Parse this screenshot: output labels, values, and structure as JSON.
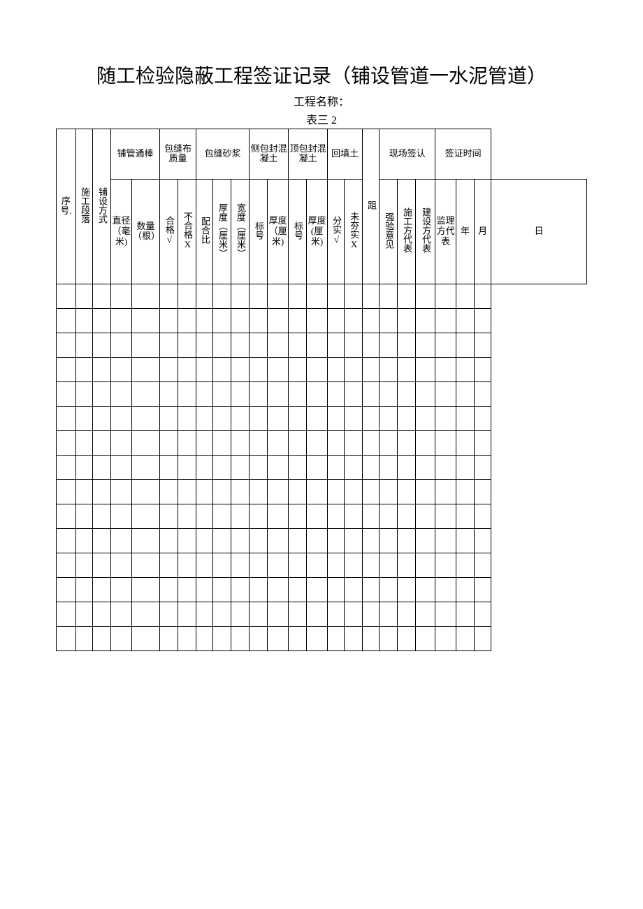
{
  "document": {
    "title": "随工检验隐蔽工程签证记录（铺设管道一水泥管道）",
    "project_name_label": "工程名称：",
    "table_label": "表三 2"
  },
  "headers": {
    "row1": {
      "xuhao": "序号.",
      "shigong": "施工段落",
      "pushefangshi": "铺设方式",
      "puguan": "铺管通棒",
      "baofengbu": "包缝布质量",
      "baofengsha": "包缝砂浆",
      "cebao": "侧包封混凝土",
      "dingbao": "顶包封混凝土",
      "huitian": "回填土",
      "ju": "跙",
      "xianchang": "现场签认",
      "qianzheng": "签证时间"
    },
    "row2": {
      "zhijing": "直径（毫米)",
      "shuliang": "数量（根）",
      "hege": "合格√",
      "buhege": "不合格X",
      "peihebi": "配合比",
      "houdu": "厚度（厘米）",
      "kuandu": "宽度（厘米）",
      "biaohao": "标号",
      "houdu_lm": "厚度（厘米)",
      "biaohao2": "标号",
      "houdu_lm2": "厚度(厘米)",
      "fenshi": "分实√",
      "weihangshi": "未夯实X",
      "qiangyan": "强验意见",
      "shigongfang": "施工方代表",
      "jianshefang": "建设方代表",
      "jianli": "监理方代表",
      "nian": "年",
      "yue": "月",
      "ri": "日"
    }
  },
  "table": {
    "num_data_rows": 15,
    "num_columns": 23
  },
  "styling": {
    "background_color": "#ffffff",
    "border_color": "#000000",
    "text_color": "#000000",
    "title_fontsize": 28,
    "header_fontsize": 13,
    "body_row_height": 35,
    "header_row1_height": 72,
    "header_row2_height": 150,
    "font_family": "SimSun"
  }
}
